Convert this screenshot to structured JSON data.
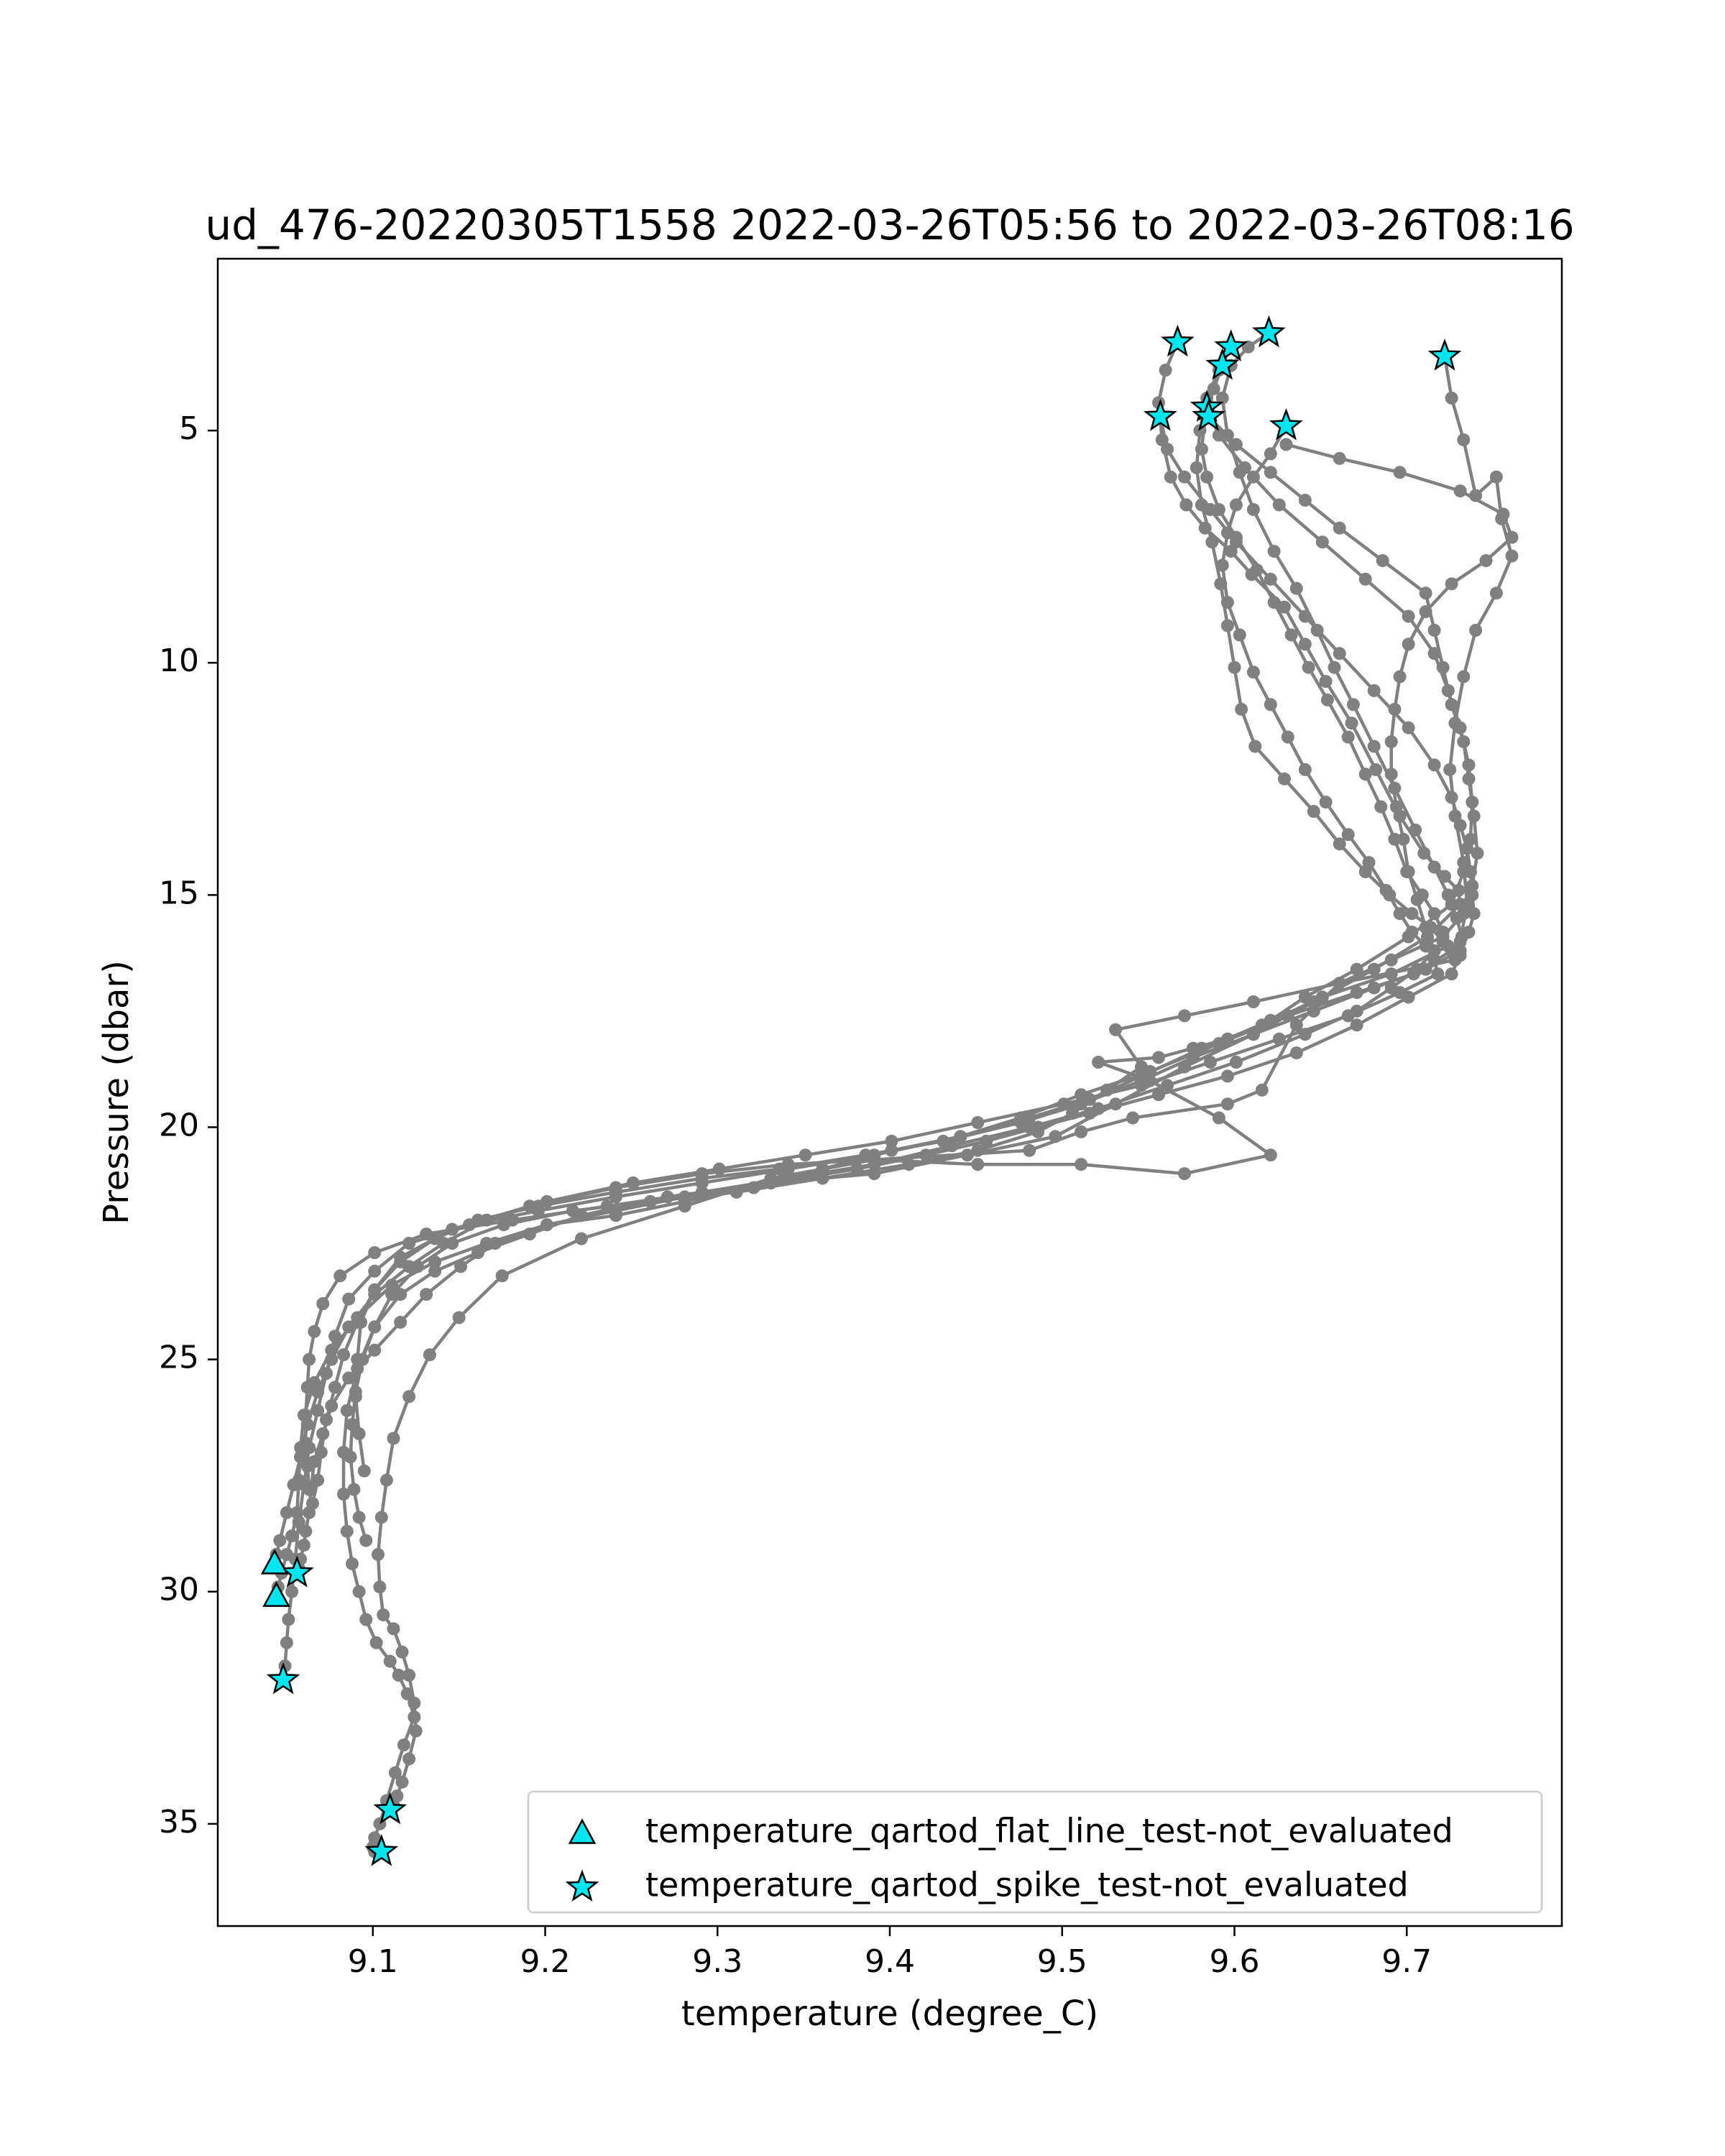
{
  "chart_data": {
    "type": "scatter",
    "title": "ud_476-20220305T1558 2022-03-26T05:56 to 2022-03-26T08:16",
    "xlabel": "temperature (degree_C)",
    "ylabel": "Pressure (dbar)",
    "xlim": [
      9.01,
      9.79
    ],
    "ylim": [
      37.2,
      1.3
    ],
    "y_inverted": true,
    "grid": false,
    "legend_position": "lower right",
    "xticks": [
      9.1,
      9.2,
      9.3,
      9.4,
      9.5,
      9.6,
      9.7
    ],
    "xtick_labels": [
      "9.1",
      "9.2",
      "9.3",
      "9.4",
      "9.5",
      "9.6",
      "9.7"
    ],
    "yticks": [
      5,
      10,
      15,
      20,
      25,
      30,
      35
    ],
    "ytick_labels": [
      "5",
      "10",
      "15",
      "20",
      "25",
      "30",
      "35"
    ],
    "profile_color": "#808080",
    "marker_fill": "#00e5ee",
    "marker_edge": "#000000",
    "profiles": [
      {
        "x": [
          9.722,
          9.726,
          9.733,
          9.74,
          9.752,
          9.755,
          9.761,
          9.752,
          9.74,
          9.733,
          9.728,
          9.725,
          9.728,
          9.733,
          9.735,
          9.731,
          9.728,
          9.661,
          9.636,
          9.616,
          9.596,
          9.541,
          9.511,
          9.481,
          9.391,
          9.331,
          9.281,
          9.221,
          9.175,
          9.15,
          9.133,
          9.121,
          9.112,
          9.108,
          9.105,
          9.103,
          9.104,
          9.106,
          9.112,
          9.117,
          9.121,
          9.124,
          9.125,
          9.121,
          9.117,
          9.114,
          9.112,
          9.11
        ],
        "y": [
          3.4,
          4.3,
          5.2,
          6.4,
          6.0,
          6.9,
          7.7,
          8.5,
          9.3,
          10.3,
          11.3,
          12.3,
          13.3,
          14.3,
          15.2,
          16.0,
          16.4,
          16.9,
          17.8,
          19.2,
          19.5,
          19.8,
          20.1,
          20.5,
          20.7,
          21.1,
          21.7,
          22.4,
          23.2,
          24.1,
          24.9,
          25.8,
          26.7,
          27.6,
          28.4,
          29.2,
          29.9,
          30.5,
          30.8,
          31.3,
          31.8,
          32.4,
          33.0,
          33.6,
          34.1,
          34.4,
          34.6,
          34.7
        ],
        "flags": [
          {
            "type": "spike",
            "x": 9.722,
            "y": 3.4
          },
          {
            "type": "spike",
            "x": 9.11,
            "y": 34.7
          }
        ]
      },
      {
        "x": [
          9.567,
          9.56,
          9.556,
          9.558,
          9.563,
          9.572,
          9.583,
          9.598,
          9.61,
          9.629,
          9.641,
          9.653,
          9.668,
          9.682,
          9.696,
          9.71,
          9.722,
          9.73,
          9.731,
          9.712,
          9.681,
          9.646,
          9.611,
          9.571,
          9.531,
          9.496,
          9.445,
          9.391,
          9.331,
          9.271,
          9.221,
          9.191,
          9.161,
          9.136,
          9.116,
          9.101,
          9.091,
          9.085,
          9.083,
          9.083,
          9.085,
          9.088,
          9.092,
          9.096,
          9.102,
          9.11,
          9.115,
          9.12,
          9.124,
          9.118,
          9.113,
          9.108,
          9.104,
          9.101,
          9.1,
          9.101,
          9.105
        ],
        "y": [
          3.1,
          3.7,
          4.4,
          5.2,
          6.0,
          6.6,
          7.1,
          7.6,
          8.1,
          8.8,
          9.6,
          10.4,
          11.3,
          12.3,
          13.3,
          14.1,
          14.6,
          14.9,
          15.2,
          15.9,
          16.6,
          17.3,
          18.0,
          18.7,
          19.5,
          20.2,
          20.6,
          21.0,
          21.2,
          21.5,
          21.9,
          22.3,
          22.7,
          23.1,
          23.6,
          24.3,
          25.2,
          26.1,
          27.0,
          27.9,
          28.7,
          29.4,
          30.0,
          30.6,
          31.1,
          31.5,
          31.8,
          32.2,
          32.7,
          33.3,
          33.9,
          34.5,
          35.0,
          35.3,
          35.5,
          35.6,
          35.6
        ],
        "flags": [
          {
            "type": "spike",
            "x": 9.567,
            "y": 3.1
          },
          {
            "type": "spike",
            "x": 9.105,
            "y": 35.6
          }
        ]
      },
      {
        "x": [
          9.598,
          9.591,
          9.584,
          9.58,
          9.578,
          9.581,
          9.587,
          9.592,
          9.596,
          9.6,
          9.604,
          9.612,
          9.629,
          9.646,
          9.661,
          9.676,
          9.69,
          9.703,
          9.714,
          9.721,
          9.726,
          9.704,
          9.671,
          9.631,
          9.591,
          9.551,
          9.511,
          9.476,
          9.441,
          9.401,
          9.361,
          9.321,
          9.281,
          9.241,
          9.201,
          9.171,
          9.151,
          9.131,
          9.116,
          9.101,
          9.086,
          9.076,
          9.071,
          9.066,
          9.064,
          9.063,
          9.061,
          9.06,
          9.058,
          9.057,
          9.056
        ],
        "y": [
          3.2,
          3.7,
          4.3,
          5.0,
          5.8,
          6.6,
          7.4,
          8.3,
          9.2,
          10.1,
          11.0,
          11.8,
          12.5,
          13.2,
          13.9,
          14.5,
          15.0,
          15.4,
          15.7,
          16.0,
          16.2,
          16.7,
          17.1,
          17.6,
          18.2,
          18.8,
          19.3,
          19.8,
          20.2,
          20.5,
          20.9,
          21.3,
          21.6,
          21.9,
          22.1,
          22.5,
          23.0,
          23.6,
          24.2,
          24.8,
          25.4,
          26.0,
          26.6,
          27.2,
          27.8,
          28.3,
          28.7,
          29.0,
          29.3,
          29.5,
          29.6
        ],
        "flags": [
          {
            "type": "spike",
            "x": 9.598,
            "y": 3.2
          },
          {
            "type": "spike",
            "x": 9.056,
            "y": 29.6
          }
        ]
      },
      {
        "x": [
          9.62,
          9.608,
          9.598,
          9.593,
          9.596,
          9.603,
          9.611,
          9.623,
          9.636,
          9.648,
          9.658,
          9.669,
          9.681,
          9.693,
          9.705,
          9.716,
          9.724,
          9.729,
          9.732,
          9.731,
          9.726,
          9.701,
          9.671,
          9.636,
          9.596,
          9.556,
          9.516,
          9.486,
          9.456,
          9.421,
          9.381,
          9.331,
          9.281,
          9.241,
          9.201,
          9.166,
          9.136,
          9.111,
          9.091,
          9.076,
          9.066,
          9.06,
          9.058,
          9.057,
          9.056,
          9.053,
          9.05,
          9.047,
          9.045,
          9.044
        ],
        "y": [
          2.9,
          3.2,
          3.6,
          4.3,
          5.1,
          5.9,
          6.7,
          7.6,
          8.4,
          9.3,
          10.1,
          10.9,
          11.8,
          12.7,
          13.6,
          14.4,
          15.0,
          15.5,
          15.9,
          16.3,
          16.7,
          17.2,
          17.8,
          18.4,
          18.9,
          19.3,
          19.7,
          20.0,
          20.3,
          20.6,
          20.9,
          21.2,
          21.5,
          21.8,
          22.1,
          22.5,
          22.9,
          23.4,
          24.1,
          24.8,
          25.5,
          26.2,
          26.9,
          27.6,
          28.3,
          28.8,
          29.2,
          29.6,
          29.9,
          30.1
        ],
        "flags": [
          {
            "type": "spike",
            "x": 9.62,
            "y": 2.9
          },
          {
            "type": "flat_line",
            "x": 9.044,
            "y": 30.1
          }
        ]
      },
      {
        "x": [
          9.593,
          9.588,
          9.583,
          9.581,
          9.584,
          9.591,
          9.601,
          9.613,
          9.623,
          9.633,
          9.643,
          9.654,
          9.666,
          9.676,
          9.685,
          9.693,
          9.7,
          9.709,
          9.716,
          9.721,
          9.724,
          9.691,
          9.651,
          9.616,
          9.581,
          9.546,
          9.516,
          9.481,
          9.441,
          9.391,
          9.341,
          9.291,
          9.241,
          9.196,
          9.156,
          9.121,
          9.101,
          9.086,
          9.078,
          9.073,
          9.068,
          9.063,
          9.06,
          9.057,
          9.055,
          9.053,
          9.051,
          9.05,
          9.049,
          9.048
        ],
        "y": [
          3.6,
          4.1,
          4.7,
          5.4,
          6.0,
          6.7,
          7.3,
          8.0,
          8.7,
          9.4,
          10.1,
          10.8,
          11.6,
          12.4,
          13.1,
          13.8,
          14.5,
          15.0,
          15.4,
          15.8,
          16.1,
          16.7,
          17.2,
          17.8,
          18.3,
          18.9,
          19.4,
          19.8,
          20.2,
          20.6,
          20.9,
          21.2,
          21.5,
          21.8,
          22.1,
          22.5,
          23.1,
          23.7,
          24.5,
          25.3,
          26.1,
          26.9,
          27.7,
          28.5,
          29.3,
          30.0,
          30.6,
          31.1,
          31.6,
          31.9
        ],
        "flags": [
          {
            "type": "spike",
            "x": 9.593,
            "y": 3.6
          },
          {
            "type": "spike",
            "x": 9.048,
            "y": 31.9
          }
        ]
      },
      {
        "x": [
          9.63,
          9.621,
          9.611,
          9.601,
          9.596,
          9.593,
          9.596,
          9.603,
          9.611,
          9.621,
          9.631,
          9.641,
          9.653,
          9.666,
          9.678,
          9.688,
          9.696,
          9.703,
          9.711,
          9.716,
          9.718,
          9.696,
          9.666,
          9.626,
          9.586,
          9.546,
          9.501,
          9.451,
          9.401,
          9.351,
          9.301,
          9.251,
          9.201,
          9.166,
          9.141,
          9.121,
          9.101,
          9.086,
          9.076,
          9.068,
          9.062,
          9.058,
          9.054,
          9.05,
          9.046,
          9.044,
          9.043
        ],
        "y": [
          4.9,
          5.5,
          6.0,
          6.6,
          7.2,
          7.9,
          8.7,
          9.4,
          10.2,
          10.9,
          11.6,
          12.3,
          13.0,
          13.7,
          14.3,
          14.9,
          15.4,
          15.8,
          16.1,
          16.4,
          16.7,
          17.1,
          17.6,
          18.1,
          18.6,
          19.1,
          19.5,
          19.9,
          20.3,
          20.6,
          20.9,
          21.2,
          21.6,
          22.0,
          22.5,
          23.0,
          23.6,
          24.3,
          25.0,
          25.7,
          26.4,
          27.1,
          27.7,
          28.3,
          28.9,
          29.2,
          29.4
        ],
        "flags": [
          {
            "type": "spike",
            "x": 9.63,
            "y": 4.9
          },
          {
            "type": "flat_line",
            "x": 9.043,
            "y": 29.4
          }
        ]
      },
      {
        "x": [
          9.557,
          9.561,
          9.571,
          9.586,
          9.601,
          9.621,
          9.641,
          9.661,
          9.681,
          9.701,
          9.716,
          9.726,
          9.731,
          9.735,
          9.737,
          9.738,
          9.739,
          9.736,
          9.731,
          9.711,
          9.681,
          9.646,
          9.611,
          9.576,
          9.546,
          9.511,
          9.476,
          9.431,
          9.386,
          9.336,
          9.291,
          9.241,
          9.196,
          9.161,
          9.136,
          9.116,
          9.101,
          9.091,
          9.083,
          9.078,
          9.073,
          9.07,
          9.068,
          9.065
        ],
        "y": [
          4.7,
          5.4,
          6.0,
          6.7,
          7.4,
          8.2,
          9.0,
          9.8,
          10.6,
          11.4,
          12.2,
          12.9,
          13.5,
          14.0,
          14.5,
          15.0,
          15.4,
          15.8,
          16.2,
          16.6,
          17.0,
          17.5,
          18.0,
          18.5,
          19.0,
          19.5,
          19.9,
          20.3,
          20.6,
          20.9,
          21.1,
          21.4,
          21.7,
          22.0,
          22.4,
          22.9,
          23.5,
          24.2,
          24.9,
          25.6,
          26.3,
          27.0,
          27.6,
          28.1
        ],
        "flags": [
          {
            "type": "spike",
            "x": 9.557,
            "y": 4.7
          }
        ]
      },
      {
        "x": [
          9.584,
          9.591,
          9.606,
          9.626,
          9.651,
          9.676,
          9.701,
          9.716,
          9.724,
          9.731,
          9.736,
          9.738,
          9.737,
          9.733,
          9.726,
          9.701,
          9.671,
          9.641,
          9.621,
          9.596,
          9.576,
          9.556,
          9.521,
          9.551,
          9.591,
          9.621,
          9.571,
          9.511,
          9.451,
          9.391,
          9.341,
          9.291,
          9.241,
          9.191,
          9.146,
          9.116,
          9.101,
          9.093,
          9.091,
          9.09,
          9.092,
          9.095
        ],
        "y": [
          4.5,
          5.1,
          5.8,
          6.6,
          7.4,
          8.2,
          9.0,
          9.8,
          10.6,
          11.4,
          12.2,
          13.0,
          13.8,
          14.5,
          15.2,
          15.9,
          16.6,
          17.2,
          17.7,
          18.1,
          18.3,
          18.5,
          18.6,
          19.0,
          19.8,
          20.6,
          21.0,
          20.8,
          20.8,
          20.7,
          20.8,
          21.0,
          21.3,
          21.7,
          22.2,
          22.8,
          23.5,
          24.2,
          25.0,
          25.8,
          26.6,
          27.4
        ],
        "flags": [
          {
            "type": "spike",
            "x": 9.584,
            "y": 4.5
          }
        ]
      },
      {
        "x": [
          9.585,
          9.601,
          9.621,
          9.641,
          9.661,
          9.686,
          9.711,
          9.716,
          9.721,
          9.726,
          9.733,
          9.736,
          9.739,
          9.741,
          9.738,
          9.733,
          9.721,
          9.691,
          9.661,
          9.611,
          9.571,
          9.531,
          9.546,
          9.526,
          9.506,
          9.486,
          9.451,
          9.411,
          9.361,
          9.311,
          9.261,
          9.216,
          9.176,
          9.146,
          9.126,
          9.111,
          9.101,
          9.094,
          9.09,
          9.088,
          9.087,
          9.089,
          9.092,
          9.096
        ],
        "y": [
          4.7,
          5.3,
          5.9,
          6.5,
          7.1,
          7.8,
          8.5,
          9.3,
          10.1,
          10.9,
          11.7,
          12.5,
          13.3,
          14.1,
          14.8,
          15.4,
          15.9,
          16.4,
          16.9,
          17.3,
          17.6,
          17.9,
          18.7,
          19.2,
          19.7,
          20.1,
          20.5,
          20.8,
          21.1,
          21.4,
          21.6,
          21.8,
          22.1,
          22.5,
          23.0,
          23.6,
          24.3,
          25.0,
          25.7,
          26.4,
          27.1,
          27.8,
          28.4,
          28.9
        ],
        "flags": [
          {
            "type": "spike",
            "x": 9.585,
            "y": 4.7
          }
        ]
      },
      {
        "x": [
          9.63,
          9.661,
          9.696,
          9.731,
          9.756,
          9.761,
          9.746,
          9.726,
          9.711,
          9.701,
          9.696,
          9.693,
          9.691,
          9.691,
          9.694,
          9.698,
          9.701,
          9.706,
          9.711,
          9.716,
          9.706,
          9.691,
          9.671,
          9.641,
          9.601,
          9.561,
          9.521,
          9.481,
          9.436,
          9.391,
          9.341,
          9.291,
          9.236,
          9.181,
          9.131,
          9.101,
          9.081,
          9.071,
          9.066,
          9.063,
          9.062,
          9.061,
          9.061,
          9.062,
          9.063
        ],
        "y": [
          5.3,
          5.6,
          5.9,
          6.3,
          6.8,
          7.3,
          7.8,
          8.3,
          8.9,
          9.6,
          10.3,
          11.0,
          11.7,
          12.4,
          13.1,
          13.8,
          14.5,
          15.1,
          15.7,
          16.2,
          16.6,
          17.0,
          17.5,
          18.0,
          18.6,
          19.1,
          19.6,
          20.0,
          20.4,
          20.8,
          21.1,
          21.4,
          21.7,
          22.0,
          22.3,
          22.7,
          23.2,
          23.8,
          24.4,
          25.0,
          25.6,
          26.2,
          26.8,
          27.3,
          27.8
        ]
      }
    ],
    "legend": [
      {
        "marker": "triangle",
        "label": "temperature_qartod_flat_line_test-not_evaluated"
      },
      {
        "marker": "star",
        "label": "temperature_qartod_spike_test-not_evaluated"
      }
    ]
  }
}
